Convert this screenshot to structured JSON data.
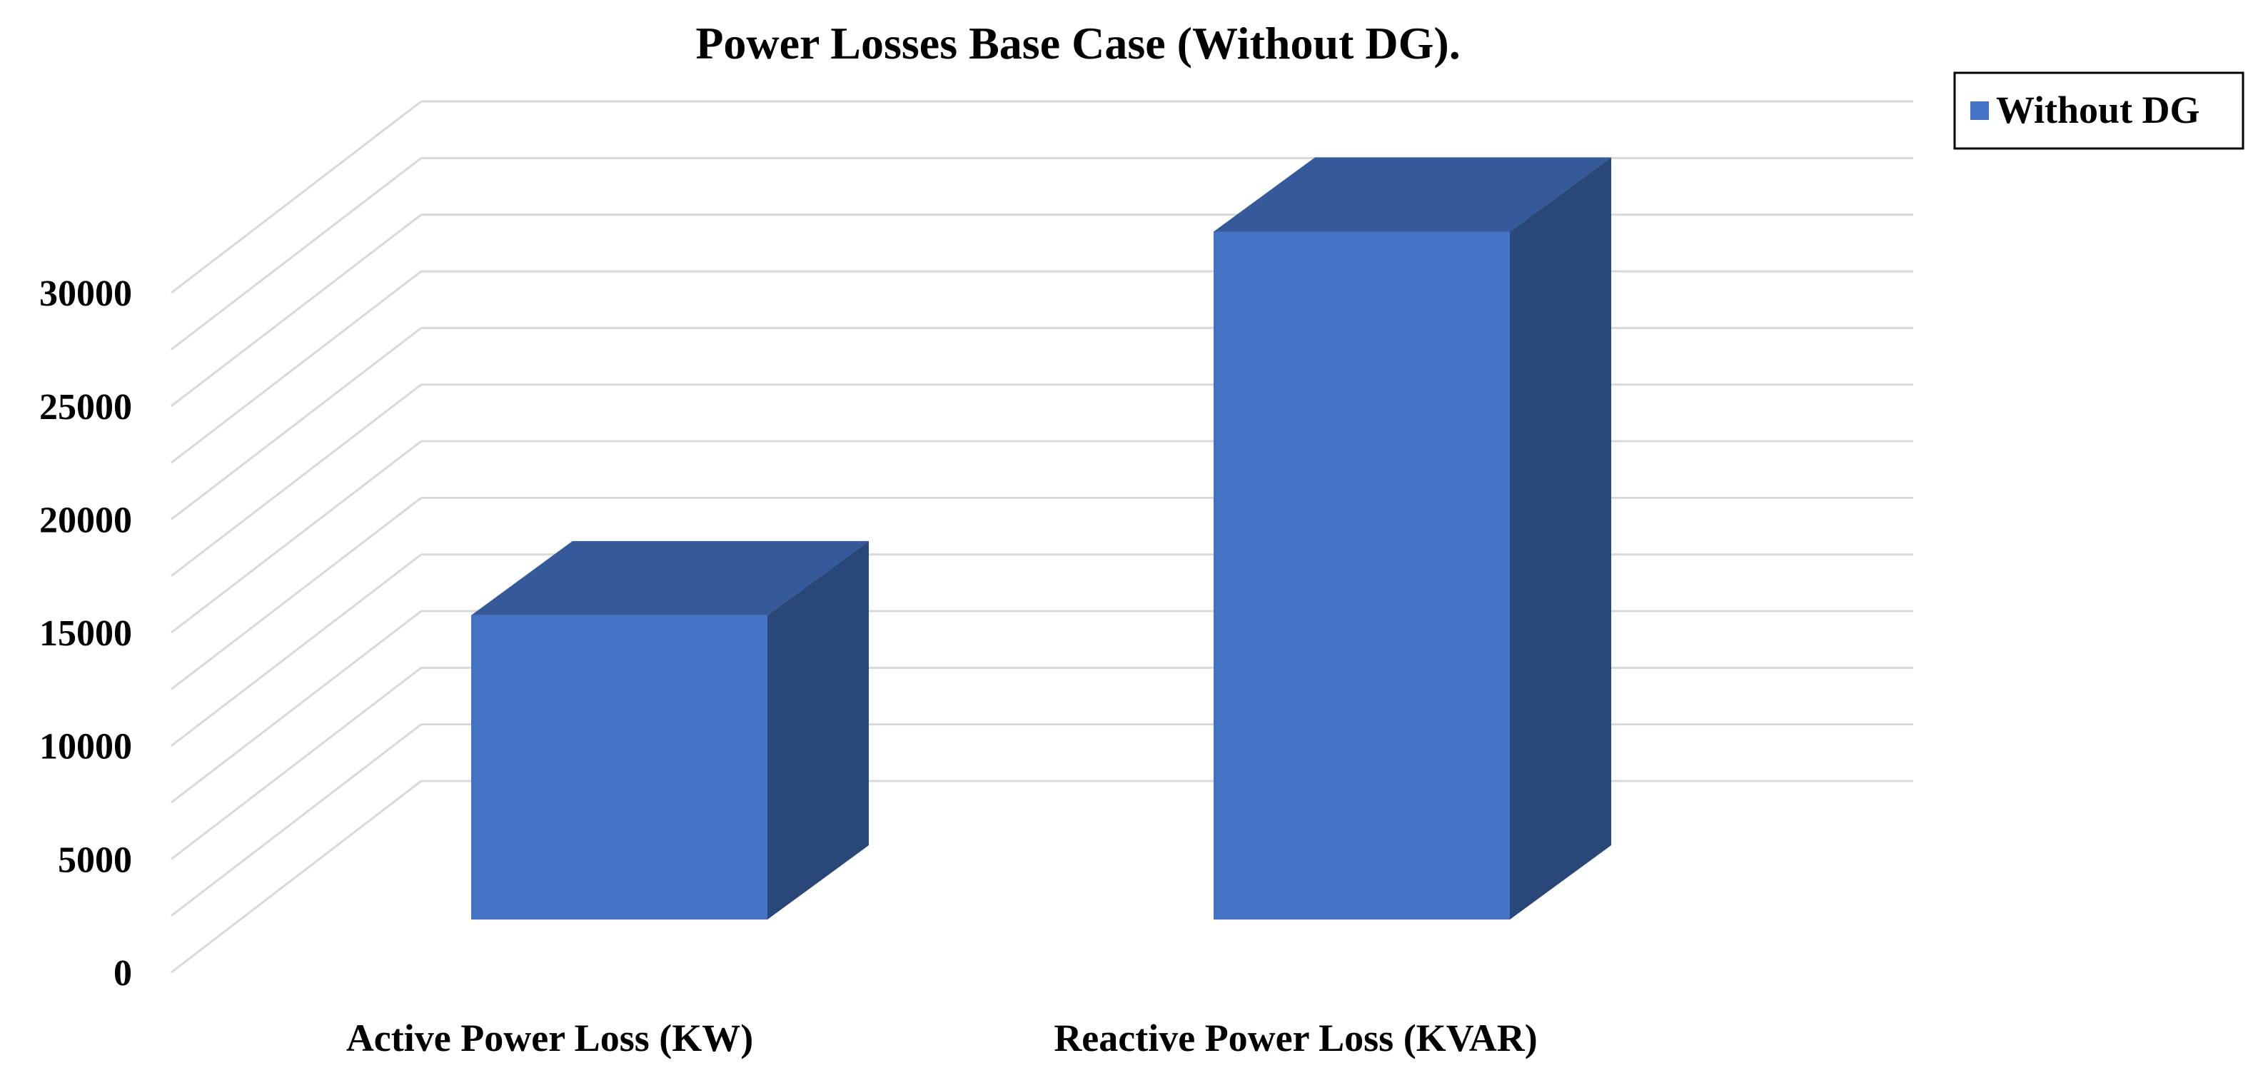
{
  "chart_data": {
    "type": "bar",
    "title": "Power Losses Base Case (Without  DG).",
    "categories": [
      "Active Power Loss (KW)",
      "Reactive Power Loss (KVAR)"
    ],
    "series": [
      {
        "name": "Without DG",
        "values": [
          13400,
          30300
        ],
        "color": "#4472C4"
      }
    ],
    "y_ticks": [
      "0",
      "5000",
      "10000",
      "15000",
      "20000",
      "25000",
      "30000"
    ],
    "ylim": [
      0,
      32000
    ],
    "grid": true,
    "legend_position": "top-right",
    "style": "3d-column"
  }
}
